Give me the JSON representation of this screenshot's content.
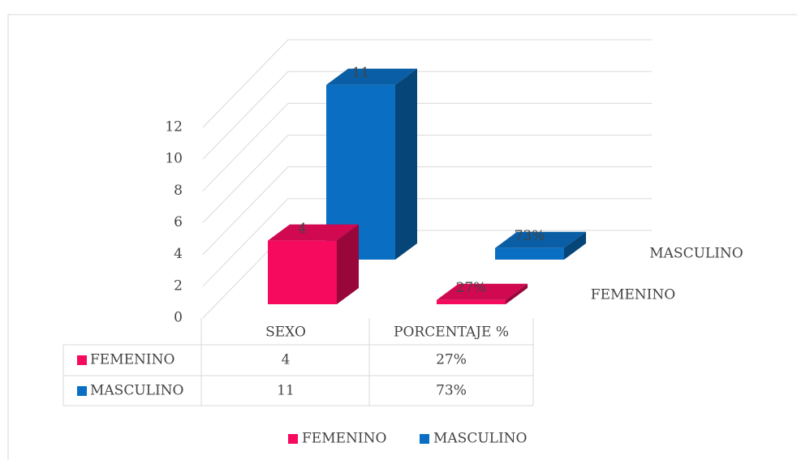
{
  "chart_data": {
    "type": "bar3d",
    "categories": [
      "SEXO",
      "PORCENTAJE %"
    ],
    "series": [
      {
        "name": "FEMENINO",
        "color": "#f50a5e",
        "values": [
          4,
          0.27
        ],
        "value_labels": [
          "4",
          "27%"
        ]
      },
      {
        "name": "MASCULINO",
        "color": "#0a6fc2",
        "values": [
          11,
          0.73
        ],
        "value_labels": [
          "11",
          "73%"
        ]
      }
    ],
    "ylim": [
      0,
      12
    ],
    "yticks": [
      0,
      2,
      4,
      6,
      8,
      10,
      12
    ],
    "grid": true,
    "legend": "bottom"
  }
}
